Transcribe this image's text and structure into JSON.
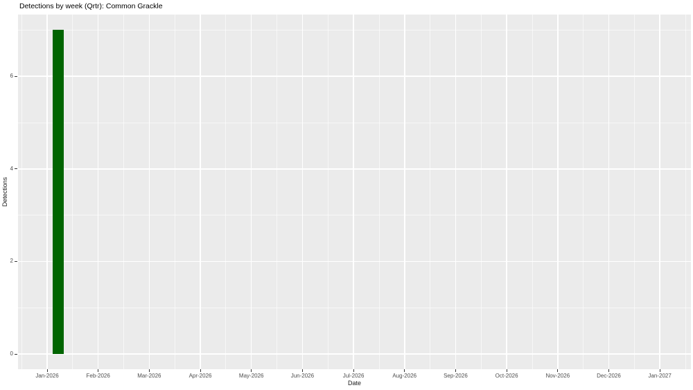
{
  "chart_data": {
    "type": "bar",
    "title": "Detections by week (Qrtr): Common Grackle",
    "xlabel": "Date",
    "ylabel": "Detections",
    "x_tick_labels": [
      "Jan-2026",
      "Feb-2026",
      "Mar-2026",
      "Apr-2026",
      "May-2026",
      "Jun-2026",
      "Jul-2026",
      "Aug-2026",
      "Sep-2026",
      "Oct-2026",
      "Nov-2026",
      "Dec-2026",
      "Jan-2027"
    ],
    "y_tick_labels": [
      "0",
      "2",
      "4",
      "6"
    ],
    "y_major_values": [
      0,
      2,
      4,
      6
    ],
    "y_minor_values": [
      1,
      3,
      5,
      7
    ],
    "ylim": [
      -0.35,
      7.35
    ],
    "x_range_months": [
      -0.57,
      12.61
    ],
    "grid": true,
    "legend_position": "none",
    "bars": [
      {
        "series": "Common Grackle",
        "week_label": "first week of Jan-2026",
        "x_month_offset": 0.22,
        "width_months": 0.22,
        "value": 7
      }
    ],
    "colors": {
      "bar_fill": "#006400",
      "panel_bg": "#EBEBEB",
      "grid": "#FFFFFF",
      "tick_mark": "#333333",
      "tick_text": "#4D4D4D",
      "axis_title_text": "#1A1A1A",
      "title_text": "#000000",
      "page_bg": "#FFFFFF"
    }
  }
}
